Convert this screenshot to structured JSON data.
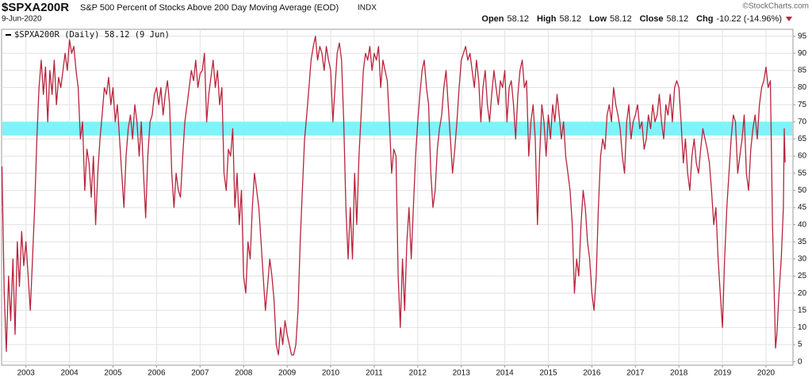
{
  "chart_data": {
    "type": "line",
    "symbol": "$SPXA200R",
    "title": "S&P 500 Percent of Stocks Above 200 Day Moving Average (EOD)",
    "exchange": "INDX",
    "date": "9-Jun-2020",
    "source": "©StockCharts.com",
    "quote": [
      {
        "label": "Open",
        "value": "58.12"
      },
      {
        "label": "High",
        "value": "58.12"
      },
      {
        "label": "Low",
        "value": "58.12"
      },
      {
        "label": "Close",
        "value": "58.12"
      },
      {
        "label": "Chg",
        "value": "-10.22 (-14.96%)"
      }
    ],
    "band": {
      "from": 66,
      "to": 70,
      "color": "#7ff3fb"
    },
    "grid": true,
    "xlim": [
      2002.44,
      2020.62
    ],
    "xticks": [
      2003,
      2004,
      2005,
      2006,
      2007,
      2008,
      2009,
      2010,
      2011,
      2012,
      2013,
      2014,
      2015,
      2016,
      2017,
      2018,
      2019,
      2020
    ],
    "ylim": [
      -1,
      97
    ],
    "yticks": [
      0,
      5,
      10,
      15,
      20,
      25,
      30,
      35,
      40,
      45,
      50,
      55,
      60,
      65,
      70,
      75,
      80,
      85,
      90,
      95
    ],
    "x": [
      2002.45,
      2002.5,
      2002.55,
      2002.6,
      2002.65,
      2002.7,
      2002.75,
      2002.8,
      2002.85,
      2002.9,
      2002.95,
      2003,
      2003.05,
      2003.1,
      2003.15,
      2003.2,
      2003.25,
      2003.3,
      2003.35,
      2003.4,
      2003.45,
      2003.5,
      2003.55,
      2003.6,
      2003.65,
      2003.7,
      2003.75,
      2003.8,
      2003.85,
      2003.9,
      2003.95,
      2004,
      2004.05,
      2004.1,
      2004.15,
      2004.2,
      2004.25,
      2004.3,
      2004.35,
      2004.4,
      2004.45,
      2004.5,
      2004.55,
      2004.6,
      2004.65,
      2004.7,
      2004.75,
      2004.8,
      2004.85,
      2004.9,
      2004.95,
      2005,
      2005.05,
      2005.1,
      2005.15,
      2005.2,
      2005.25,
      2005.3,
      2005.35,
      2005.4,
      2005.45,
      2005.5,
      2005.55,
      2005.6,
      2005.65,
      2005.7,
      2005.75,
      2005.8,
      2005.85,
      2005.9,
      2005.95,
      2006,
      2006.05,
      2006.1,
      2006.15,
      2006.2,
      2006.25,
      2006.3,
      2006.35,
      2006.4,
      2006.45,
      2006.5,
      2006.55,
      2006.6,
      2006.65,
      2006.7,
      2006.75,
      2006.8,
      2006.85,
      2006.9,
      2006.95,
      2007,
      2007.05,
      2007.1,
      2007.15,
      2007.2,
      2007.25,
      2007.3,
      2007.35,
      2007.4,
      2007.45,
      2007.5,
      2007.55,
      2007.6,
      2007.65,
      2007.7,
      2007.75,
      2007.8,
      2007.85,
      2007.9,
      2007.95,
      2008,
      2008.05,
      2008.1,
      2008.15,
      2008.2,
      2008.25,
      2008.3,
      2008.35,
      2008.4,
      2008.45,
      2008.5,
      2008.55,
      2008.6,
      2008.65,
      2008.7,
      2008.75,
      2008.8,
      2008.85,
      2008.9,
      2008.95,
      2009,
      2009.05,
      2009.1,
      2009.15,
      2009.2,
      2009.25,
      2009.3,
      2009.35,
      2009.4,
      2009.45,
      2009.5,
      2009.55,
      2009.6,
      2009.65,
      2009.7,
      2009.75,
      2009.8,
      2009.85,
      2009.9,
      2009.95,
      2010,
      2010.05,
      2010.1,
      2010.15,
      2010.2,
      2010.25,
      2010.3,
      2010.35,
      2010.4,
      2010.45,
      2010.5,
      2010.55,
      2010.6,
      2010.65,
      2010.7,
      2010.75,
      2010.8,
      2010.85,
      2010.9,
      2010.95,
      2011,
      2011.05,
      2011.1,
      2011.15,
      2011.2,
      2011.25,
      2011.3,
      2011.35,
      2011.4,
      2011.45,
      2011.5,
      2011.55,
      2011.6,
      2011.65,
      2011.7,
      2011.75,
      2011.8,
      2011.85,
      2011.9,
      2011.95,
      2012,
      2012.05,
      2012.1,
      2012.15,
      2012.2,
      2012.25,
      2012.3,
      2012.35,
      2012.4,
      2012.45,
      2012.5,
      2012.55,
      2012.6,
      2012.65,
      2012.7,
      2012.75,
      2012.8,
      2012.85,
      2012.9,
      2012.95,
      2013,
      2013.05,
      2013.1,
      2013.15,
      2013.2,
      2013.25,
      2013.3,
      2013.35,
      2013.4,
      2013.45,
      2013.5,
      2013.55,
      2013.6,
      2013.65,
      2013.7,
      2013.75,
      2013.8,
      2013.85,
      2013.9,
      2013.95,
      2014,
      2014.05,
      2014.1,
      2014.15,
      2014.2,
      2014.25,
      2014.3,
      2014.35,
      2014.4,
      2014.45,
      2014.5,
      2014.55,
      2014.6,
      2014.65,
      2014.7,
      2014.75,
      2014.8,
      2014.85,
      2014.9,
      2014.95,
      2015,
      2015.05,
      2015.1,
      2015.15,
      2015.2,
      2015.25,
      2015.3,
      2015.35,
      2015.4,
      2015.45,
      2015.5,
      2015.55,
      2015.6,
      2015.65,
      2015.7,
      2015.75,
      2015.8,
      2015.85,
      2015.9,
      2015.95,
      2016,
      2016.05,
      2016.1,
      2016.15,
      2016.2,
      2016.25,
      2016.3,
      2016.35,
      2016.4,
      2016.45,
      2016.5,
      2016.55,
      2016.6,
      2016.65,
      2016.7,
      2016.75,
      2016.8,
      2016.85,
      2016.9,
      2016.95,
      2017,
      2017.05,
      2017.1,
      2017.15,
      2017.2,
      2017.25,
      2017.3,
      2017.35,
      2017.4,
      2017.45,
      2017.5,
      2017.55,
      2017.6,
      2017.65,
      2017.7,
      2017.75,
      2017.8,
      2017.85,
      2017.9,
      2017.95,
      2018,
      2018.05,
      2018.1,
      2018.15,
      2018.2,
      2018.25,
      2018.3,
      2018.35,
      2018.4,
      2018.45,
      2018.5,
      2018.55,
      2018.6,
      2018.65,
      2018.7,
      2018.75,
      2018.8,
      2018.85,
      2018.9,
      2018.95,
      2019,
      2019.05,
      2019.1,
      2019.15,
      2019.2,
      2019.25,
      2019.3,
      2019.35,
      2019.4,
      2019.45,
      2019.5,
      2019.55,
      2019.6,
      2019.65,
      2019.7,
      2019.75,
      2019.8,
      2019.85,
      2019.9,
      2019.95,
      2020,
      2020.05,
      2020.1,
      2020.15,
      2020.2,
      2020.22,
      2020.25,
      2020.3,
      2020.35,
      2020.4,
      2020.42,
      2020.44
    ],
    "series": [
      {
        "name": "$SPXA200R (Daily) 58.12 (9 Jun)",
        "color": "#b8243c",
        "values": [
          57,
          20,
          3,
          25,
          12,
          30,
          8,
          35,
          22,
          38,
          28,
          35,
          25,
          15,
          30,
          45,
          65,
          80,
          88,
          78,
          86,
          70,
          85,
          78,
          88,
          75,
          83,
          80,
          85,
          90,
          85,
          94,
          90,
          92,
          85,
          80,
          65,
          70,
          50,
          62,
          58,
          48,
          60,
          40,
          55,
          65,
          72,
          80,
          78,
          83,
          75,
          80,
          70,
          75,
          65,
          55,
          45,
          60,
          68,
          72,
          65,
          75,
          70,
          60,
          70,
          55,
          42,
          60,
          70,
          72,
          78,
          80,
          75,
          80,
          72,
          78,
          82,
          75,
          55,
          45,
          55,
          50,
          48,
          60,
          70,
          75,
          80,
          85,
          82,
          88,
          80,
          84,
          85,
          90,
          70,
          78,
          83,
          88,
          80,
          85,
          75,
          80,
          55,
          50,
          62,
          60,
          68,
          45,
          55,
          40,
          50,
          25,
          20,
          35,
          30,
          45,
          55,
          50,
          45,
          35,
          25,
          15,
          22,
          30,
          25,
          18,
          5,
          2,
          10,
          5,
          12,
          8,
          5,
          2,
          2,
          5,
          15,
          35,
          50,
          65,
          72,
          80,
          88,
          92,
          95,
          88,
          92,
          90,
          85,
          92,
          88,
          85,
          70,
          80,
          90,
          93,
          88,
          70,
          45,
          30,
          45,
          30,
          55,
          40,
          60,
          72,
          85,
          90,
          88,
          92,
          85,
          90,
          88,
          92,
          80,
          88,
          85,
          82,
          70,
          55,
          62,
          60,
          25,
          10,
          30,
          15,
          35,
          45,
          30,
          45,
          60,
          70,
          78,
          85,
          88,
          80,
          75,
          55,
          45,
          50,
          62,
          68,
          72,
          80,
          85,
          75,
          65,
          55,
          62,
          70,
          80,
          88,
          90,
          92,
          88,
          90,
          85,
          80,
          88,
          82,
          70,
          80,
          85,
          75,
          70,
          78,
          85,
          80,
          75,
          82,
          80,
          85,
          70,
          80,
          82,
          75,
          65,
          78,
          85,
          88,
          80,
          82,
          60,
          70,
          75,
          65,
          40,
          60,
          75,
          70,
          60,
          72,
          65,
          75,
          70,
          78,
          72,
          65,
          70,
          60,
          55,
          50,
          40,
          20,
          30,
          25,
          40,
          50,
          45,
          35,
          30,
          20,
          15,
          25,
          45,
          60,
          65,
          62,
          72,
          75,
          70,
          80,
          75,
          72,
          68,
          60,
          55,
          70,
          75,
          65,
          70,
          72,
          75,
          68,
          70,
          62,
          65,
          72,
          68,
          75,
          70,
          72,
          78,
          70,
          65,
          75,
          72,
          78,
          70,
          80,
          82,
          80,
          70,
          58,
          65,
          55,
          50,
          60,
          65,
          58,
          55,
          62,
          68,
          65,
          62,
          58,
          50,
          40,
          45,
          30,
          20,
          10,
          30,
          45,
          55,
          65,
          72,
          70,
          55,
          60,
          65,
          72,
          55,
          50,
          62,
          68,
          72,
          65,
          75,
          80,
          82,
          86,
          80,
          82,
          40,
          15,
          4,
          8,
          20,
          30,
          45,
          68,
          58.12
        ]
      }
    ]
  }
}
